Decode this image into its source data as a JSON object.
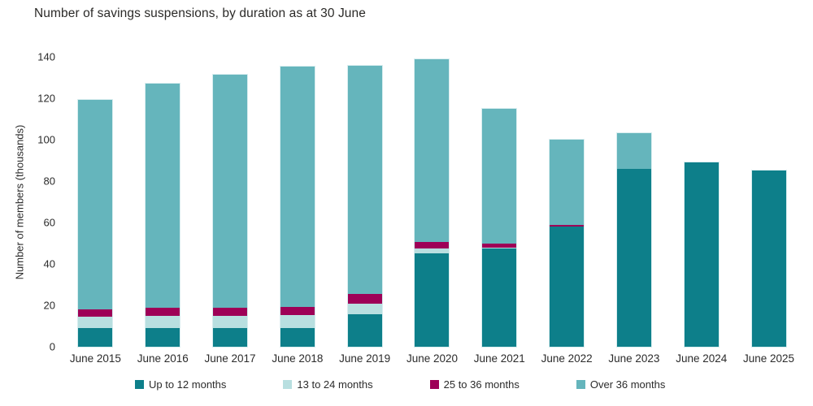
{
  "title": "Number of savings suspensions, by duration as at 30 June",
  "chart_data": {
    "type": "bar",
    "stacked": true,
    "title": "Number of savings suspensions, by duration as at 30 June",
    "xlabel": "",
    "ylabel": "Number of members (thousands)",
    "ylim": [
      0,
      140
    ],
    "yticks": [
      0,
      20,
      40,
      60,
      80,
      100,
      120,
      140
    ],
    "grid": false,
    "legend_position": "bottom",
    "categories": [
      "June 2015",
      "June 2016",
      "June 2017",
      "June 2018",
      "June 2019",
      "June 2020",
      "June 2021",
      "June 2022",
      "June 2023",
      "June 2024",
      "June 2025"
    ],
    "series": [
      {
        "name": "Up to 12 months",
        "color": "#0D7F8A",
        "values": [
          9,
          9,
          9,
          9.2,
          15.5,
          45,
          47.5,
          58,
          86,
          89,
          85
        ]
      },
      {
        "name": "13 to 24 months",
        "color": "#B8DFE0",
        "values": [
          5.5,
          6,
          6,
          6,
          5.3,
          2.6,
          0.5,
          0,
          0,
          0,
          0
        ]
      },
      {
        "name": "25 to 36 months",
        "color": "#9E0057",
        "values": [
          3.7,
          3.7,
          3.8,
          3.9,
          4.6,
          3.1,
          2,
          1,
          0,
          0,
          0
        ]
      },
      {
        "name": "Over 36 months",
        "color": "#65B5BC",
        "values": [
          101,
          108.5,
          112.5,
          116.4,
          110.3,
          88,
          65,
          41,
          17,
          0,
          0
        ]
      }
    ],
    "totals": [
      119.2,
      127.2,
      131.3,
      135.5,
      135.7,
      138.7,
      115,
      100,
      103,
      89,
      85
    ]
  }
}
